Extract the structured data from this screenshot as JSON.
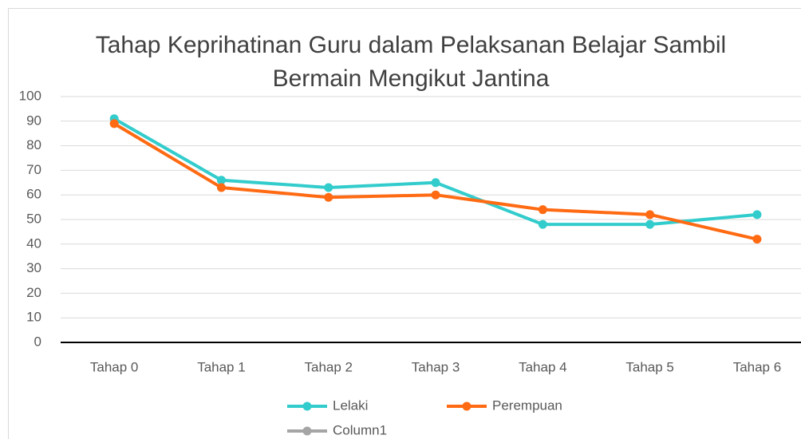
{
  "chart_data": {
    "type": "line",
    "title": "Tahap Keprihatinan Guru dalam Pelaksanan Belajar Sambil Bermain Mengikut Jantina",
    "categories": [
      "Tahap 0",
      "Tahap 1",
      "Tahap 2",
      "Tahap 3",
      "Tahap 4",
      "Tahap 5",
      "Tahap 6"
    ],
    "series": [
      {
        "name": "Lelaki",
        "color": "#33cccc",
        "values": [
          91,
          66,
          63,
          65,
          48,
          48,
          52
        ]
      },
      {
        "name": "Perempuan",
        "color": "#ff6a13",
        "values": [
          89,
          63,
          59,
          60,
          54,
          52,
          42
        ]
      },
      {
        "name": "Column1",
        "color": "#a5a5a5",
        "values": [
          null,
          null,
          null,
          null,
          null,
          null,
          null
        ]
      }
    ],
    "ylim": [
      0,
      100
    ],
    "yticks": [
      0,
      10,
      20,
      30,
      40,
      50,
      60,
      70,
      80,
      90,
      100
    ],
    "grid": true
  }
}
